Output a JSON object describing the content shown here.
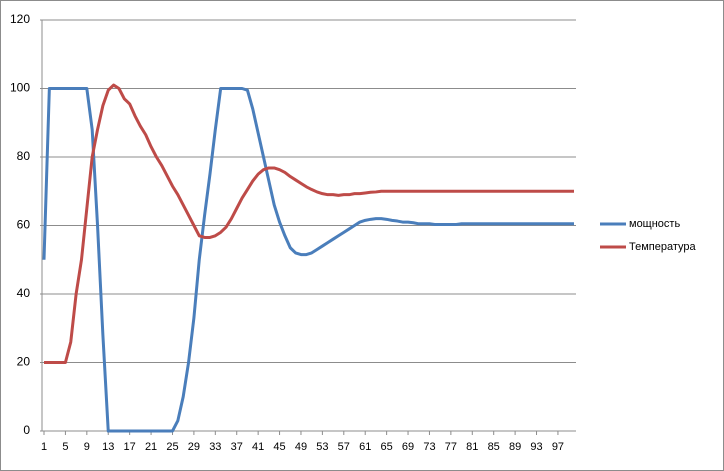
{
  "chart_data": {
    "type": "line",
    "x": [
      1,
      2,
      3,
      4,
      5,
      6,
      7,
      8,
      9,
      10,
      11,
      12,
      13,
      14,
      15,
      16,
      17,
      18,
      19,
      20,
      21,
      22,
      23,
      24,
      25,
      26,
      27,
      28,
      29,
      30,
      31,
      32,
      33,
      34,
      35,
      36,
      37,
      38,
      39,
      40,
      41,
      42,
      43,
      44,
      45,
      46,
      47,
      48,
      49,
      50,
      51,
      52,
      53,
      54,
      55,
      56,
      57,
      58,
      59,
      60,
      61,
      62,
      63,
      64,
      65,
      66,
      67,
      68,
      69,
      70,
      71,
      72,
      73,
      74,
      75,
      76,
      77,
      78,
      79,
      80,
      81,
      82,
      83,
      84,
      85,
      86,
      87,
      88,
      89,
      90,
      91,
      92,
      93,
      94,
      95,
      96,
      97,
      98,
      99,
      100
    ],
    "series": [
      {
        "name": "мощность",
        "color": "#4a7ebb",
        "values": [
          50,
          100,
          100,
          100,
          100,
          100,
          100,
          100,
          100,
          88,
          60,
          28,
          0,
          0,
          0,
          0,
          0,
          0,
          0,
          0,
          0,
          0,
          0,
          0,
          0,
          3,
          10,
          20,
          33,
          50,
          63,
          75,
          88,
          100,
          100,
          100,
          100,
          100,
          99.5,
          94,
          87,
          80,
          73,
          66,
          61,
          57,
          53.5,
          52,
          51.5,
          51.5,
          52,
          53,
          54,
          55,
          56,
          57,
          58,
          59,
          60,
          61,
          61.5,
          61.8,
          62,
          62,
          61.8,
          61.5,
          61.3,
          61,
          61,
          60.8,
          60.5,
          60.5,
          60.5,
          60.3,
          60.3,
          60.3,
          60.3,
          60.3,
          60.5,
          60.5,
          60.5,
          60.5,
          60.5,
          60.5,
          60.5,
          60.5,
          60.5,
          60.5,
          60.5,
          60.5,
          60.5,
          60.5,
          60.5,
          60.5,
          60.5,
          60.5,
          60.5,
          60.5,
          60.5,
          60.5
        ]
      },
      {
        "name": "Температура",
        "color": "#be4b48",
        "values": [
          20,
          20,
          20,
          20,
          20,
          26,
          40,
          50,
          65,
          80,
          88,
          95,
          99.5,
          101,
          100,
          97,
          95.5,
          92,
          89,
          86.5,
          83,
          80,
          77.5,
          74.5,
          71.5,
          69,
          66,
          63,
          60,
          57,
          56.5,
          56.5,
          57,
          58,
          59.5,
          62,
          65,
          68,
          70.5,
          73,
          75,
          76.3,
          76.8,
          76.8,
          76.3,
          75.5,
          74.3,
          73.3,
          72.3,
          71.3,
          70.5,
          69.8,
          69.3,
          69,
          69,
          68.8,
          69,
          69,
          69.3,
          69.3,
          69.5,
          69.7,
          69.8,
          70,
          70,
          70,
          70,
          70,
          70,
          70,
          70,
          70,
          70,
          70,
          70,
          70,
          70,
          70,
          70,
          70,
          70,
          70,
          70,
          70,
          70,
          70,
          70,
          70,
          70,
          70,
          70,
          70,
          70,
          70,
          70,
          70,
          70,
          70,
          70,
          70
        ]
      }
    ],
    "xlim": [
      1,
      100
    ],
    "xticks": [
      1,
      5,
      9,
      13,
      17,
      21,
      25,
      29,
      33,
      37,
      41,
      45,
      49,
      53,
      57,
      61,
      65,
      69,
      73,
      77,
      81,
      85,
      89,
      93,
      97
    ],
    "ylim": [
      0,
      120
    ],
    "yticks": [
      0,
      20,
      40,
      60,
      80,
      100,
      120
    ],
    "grid": true
  }
}
